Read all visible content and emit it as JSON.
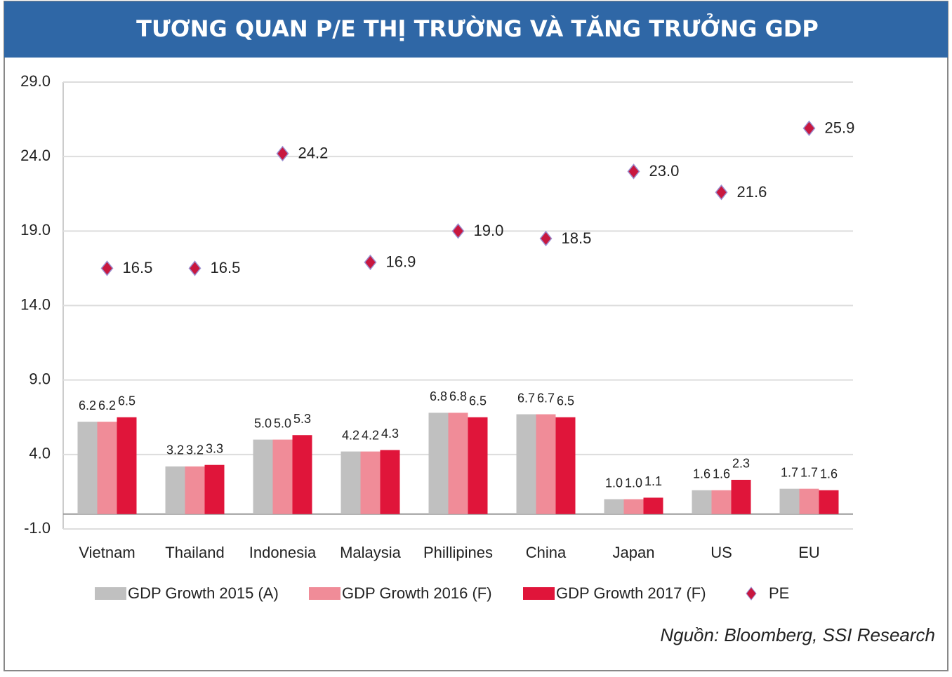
{
  "header": {
    "title": "TƯƠNG QUAN P/E THỊ TRƯỜNG VÀ TĂNG TRƯỞNG GDP"
  },
  "chart_data": {
    "type": "bar",
    "categories": [
      "Vietnam",
      "Thailand",
      "Indonesia",
      "Malaysia",
      "Phillipines",
      "China",
      "Japan",
      "US",
      "EU"
    ],
    "series": [
      {
        "name": "GDP Growth 2015 (A)",
        "type": "bar",
        "color": "#c0c0c0",
        "values": [
          6.2,
          3.2,
          5.0,
          4.2,
          6.8,
          6.7,
          1.0,
          1.6,
          1.7
        ],
        "value_labels": [
          "6.2",
          "3.2",
          "5.0",
          "4.2",
          "6.8",
          "6.7",
          "1.0",
          "1.6",
          "1.7"
        ]
      },
      {
        "name": "GDP Growth 2016 (F)",
        "type": "bar",
        "color": "#f08c98",
        "values": [
          6.2,
          3.2,
          5.0,
          4.2,
          6.8,
          6.7,
          1.0,
          1.6,
          1.7
        ],
        "value_labels": [
          "6.2",
          "3.2",
          "5.0",
          "4.2",
          "6.8",
          "6.7",
          "1.0",
          "1.6",
          "1.7"
        ]
      },
      {
        "name": "GDP Growth 2017 (F)",
        "type": "bar",
        "color": "#e0153a",
        "values": [
          6.5,
          3.3,
          5.3,
          4.3,
          6.5,
          6.5,
          1.1,
          2.3,
          1.6
        ],
        "value_labels": [
          "6.5",
          "3.3",
          "5.3",
          "4.3",
          "6.5",
          "6.5",
          "1.1",
          "2.3",
          "1.6"
        ]
      },
      {
        "name": "PE",
        "type": "scatter",
        "color": "#c8173f",
        "values": [
          16.5,
          16.5,
          24.2,
          16.9,
          19.0,
          18.5,
          23.0,
          21.6,
          25.9
        ],
        "value_labels": [
          "16.5",
          "16.5",
          "24.2",
          "16.9",
          "19.0",
          "18.5",
          "23.0",
          "21.6",
          "25.9"
        ]
      }
    ],
    "ylim": [
      -1,
      29
    ],
    "yticks": [
      {
        "value": -1,
        "label": "-1.0"
      },
      {
        "value": 4,
        "label": "4.0"
      },
      {
        "value": 9,
        "label": "9.0"
      },
      {
        "value": 14,
        "label": "14.0"
      },
      {
        "value": 19,
        "label": "19.0"
      },
      {
        "value": 24,
        "label": "24.0"
      },
      {
        "value": 29,
        "label": "29.0"
      }
    ],
    "grid": true,
    "source": "Nguồn: Bloomberg, SSI Research"
  }
}
